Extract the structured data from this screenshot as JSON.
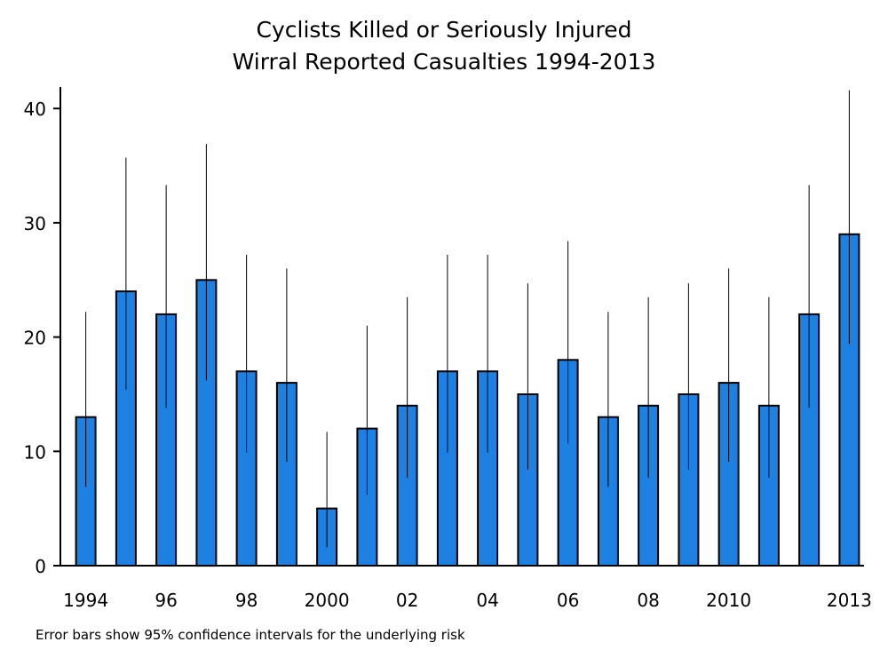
{
  "chart_data": {
    "type": "bar",
    "title": "Cyclists Killed or Seriously Injured",
    "subtitle": "Wirral Reported Casualties 1994-2013",
    "xlabel": "",
    "ylabel": "",
    "ylim": [
      0,
      42
    ],
    "yticks": [
      0,
      10,
      20,
      30,
      40
    ],
    "categories": [
      "1994",
      "1995",
      "1996",
      "1997",
      "1998",
      "1999",
      "2000",
      "2001",
      "2002",
      "2003",
      "2004",
      "2005",
      "2006",
      "2007",
      "2008",
      "2009",
      "2010",
      "2011",
      "2012",
      "2013"
    ],
    "tick_labels": [
      "1994",
      "",
      "96",
      "",
      "98",
      "",
      "2000",
      "",
      "02",
      "",
      "04",
      "",
      "06",
      "",
      "08",
      "",
      "2010",
      "",
      "",
      "2013"
    ],
    "values": [
      13,
      24,
      22,
      25,
      17,
      16,
      5,
      12,
      14,
      17,
      17,
      15,
      18,
      13,
      14,
      15,
      16,
      14,
      22,
      29
    ],
    "error_low": [
      6.9,
      15.4,
      13.8,
      16.2,
      9.9,
      9.1,
      1.6,
      6.2,
      7.7,
      9.9,
      9.9,
      8.4,
      10.7,
      6.9,
      7.7,
      8.4,
      9.1,
      7.7,
      13.8,
      19.4
    ],
    "error_high": [
      22.2,
      35.7,
      33.3,
      36.9,
      27.2,
      26.0,
      11.7,
      21.0,
      23.5,
      27.2,
      27.2,
      24.7,
      28.4,
      22.2,
      23.5,
      24.7,
      26.0,
      23.5,
      33.3,
      41.6
    ],
    "bar_color": "#1e80e0",
    "grid": false,
    "legend": "none",
    "note": "Error bars show 95% confidence intervals for the underlying risk"
  }
}
